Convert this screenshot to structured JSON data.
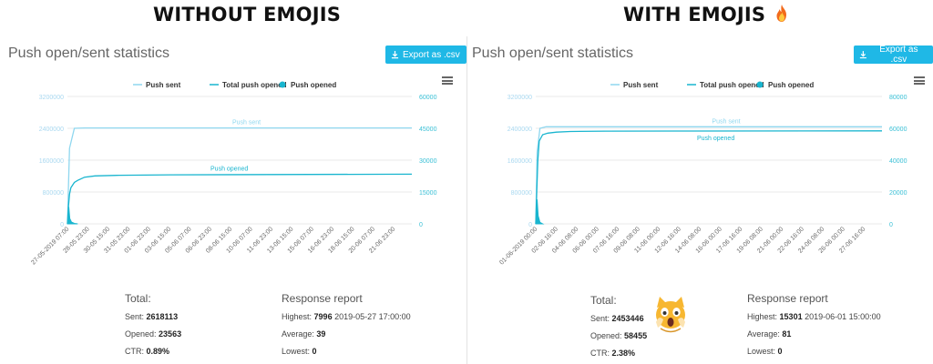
{
  "headings": {
    "left": "WITHOUT EMOJIS",
    "right": "WITH EMOJIS"
  },
  "icons": {
    "fire": "fire-icon",
    "download": "download-icon",
    "menu": "hamburger-menu-icon",
    "cat": "scream-cat-emoji"
  },
  "colors": {
    "sent": "#8fd7ef",
    "opened": "#19b5cf",
    "button": "#1fb8e6",
    "grid": "#e8e8e8",
    "left_axis": "#a9d8f0",
    "right_axis": "#3bc0d6"
  },
  "panels": [
    {
      "title": "Push open/sent statistics",
      "export_label": "Export as .csv",
      "summary": {
        "total_label": "Total:",
        "sent_label": "Sent:",
        "sent_value": "2618113",
        "opened_label": "Opened:",
        "opened_value": "23563",
        "ctr_label": "CTR:",
        "ctr_value": "0.89%"
      },
      "response": {
        "title": "Response report",
        "highest_label": "Highest:",
        "highest_value": "7996",
        "highest_time": "2019-05-27 17:00:00",
        "average_label": "Average:",
        "average_value": "39",
        "lowest_label": "Lowest:",
        "lowest_value": "0"
      }
    },
    {
      "title": "Push open/sent statistics",
      "export_label": "Export as .csv",
      "summary": {
        "total_label": "Total:",
        "sent_label": "Sent:",
        "sent_value": "2453446",
        "opened_label": "Opened:",
        "opened_value": "58455",
        "ctr_label": "CTR:",
        "ctr_value": "2.38%"
      },
      "response": {
        "title": "Response report",
        "highest_label": "Highest:",
        "highest_value": "15301",
        "highest_time": "2019-06-01 15:00:00",
        "average_label": "Average:",
        "average_value": "81",
        "lowest_label": "Lowest:",
        "lowest_value": "0"
      }
    }
  ],
  "chart_data": [
    {
      "type": "line",
      "legend": [
        "Push sent",
        "Total push opened",
        "Push opened"
      ],
      "legend_position": "top-center",
      "grid": true,
      "y_left": {
        "ticks": [
          0,
          800000,
          1600000,
          2400000,
          3200000
        ],
        "range": [
          0,
          3200000
        ]
      },
      "y_right": {
        "ticks": [
          0,
          15000,
          30000,
          45000,
          60000
        ],
        "range": [
          0,
          60000
        ]
      },
      "x_ticks": [
        "27-05-2019 07:00",
        "28-05 23:00",
        "30-05 15:00",
        "31-05 23:00",
        "01-06 23:00",
        "03-06 15:00",
        "05-06 07:00",
        "06-06 23:00",
        "08-06 15:00",
        "10-06 07:00",
        "11-06 23:00",
        "13-06 15:00",
        "15-06 07:00",
        "16-06 23:00",
        "18-06 15:00",
        "20-06 07:00",
        "21-06 23:00"
      ],
      "annotations": {
        "sent": "Push sent",
        "opened": "Push opened"
      },
      "series": [
        {
          "name": "Push sent",
          "axis": "left",
          "x": [
            0,
            0.006,
            0.02,
            0.05,
            0.3,
            1
          ],
          "y": [
            0,
            1900000,
            2400000,
            2410000,
            2410000,
            2410000
          ]
        },
        {
          "name": "Total push opened",
          "axis": "right",
          "x": [
            0,
            0.003,
            0.006,
            0.01,
            0.02,
            0.03,
            0.05,
            0.08,
            0.15,
            0.3,
            1
          ],
          "y": [
            0,
            8000,
            14000,
            17000,
            19500,
            20500,
            22000,
            22600,
            22900,
            23100,
            23400
          ]
        },
        {
          "name": "Push opened",
          "axis": "right",
          "x": [
            0,
            0.002,
            0.004,
            0.007,
            0.012,
            0.02,
            0.03
          ],
          "y": [
            0,
            4000,
            7996,
            2500,
            800,
            200,
            0
          ]
        }
      ]
    },
    {
      "type": "line",
      "legend": [
        "Push sent",
        "Total push opened",
        "Push opened"
      ],
      "legend_position": "top-center",
      "grid": true,
      "y_left": {
        "ticks": [
          0,
          800000,
          1600000,
          2400000,
          3200000
        ],
        "range": [
          0,
          3200000
        ]
      },
      "y_right": {
        "ticks": [
          0,
          20000,
          40000,
          60000,
          80000
        ],
        "range": [
          0,
          80000
        ]
      },
      "x_ticks": [
        "01-06-2019 00:00",
        "02-06 16:00",
        "04-06 08:00",
        "06-06 00:00",
        "07-06 16:00",
        "09-06 08:00",
        "11-06 00:00",
        "12-06 16:00",
        "14-06 08:00",
        "16-06 00:00",
        "17-06 16:00",
        "19-06 08:00",
        "21-06 00:00",
        "22-06 16:00",
        "24-06 08:00",
        "26-06 00:00",
        "27-06 16:00"
      ],
      "annotations": {
        "sent": "Push sent",
        "opened": "Push opened"
      },
      "series": [
        {
          "name": "Push sent",
          "axis": "left",
          "x": [
            0,
            0.004,
            0.012,
            0.03,
            0.3,
            1
          ],
          "y": [
            0,
            1800000,
            2400000,
            2440000,
            2440000,
            2440000
          ]
        },
        {
          "name": "Total push opened",
          "axis": "right",
          "x": [
            0,
            0.003,
            0.006,
            0.01,
            0.02,
            0.035,
            0.06,
            0.1,
            0.2,
            0.4,
            1
          ],
          "y": [
            0,
            20000,
            40000,
            52000,
            56000,
            57000,
            57600,
            58000,
            58200,
            58300,
            58400
          ]
        },
        {
          "name": "Push opened",
          "axis": "right",
          "x": [
            0,
            0.002,
            0.004,
            0.007,
            0.012,
            0.02
          ],
          "y": [
            0,
            9000,
            15301,
            5000,
            1000,
            0
          ]
        }
      ]
    }
  ]
}
